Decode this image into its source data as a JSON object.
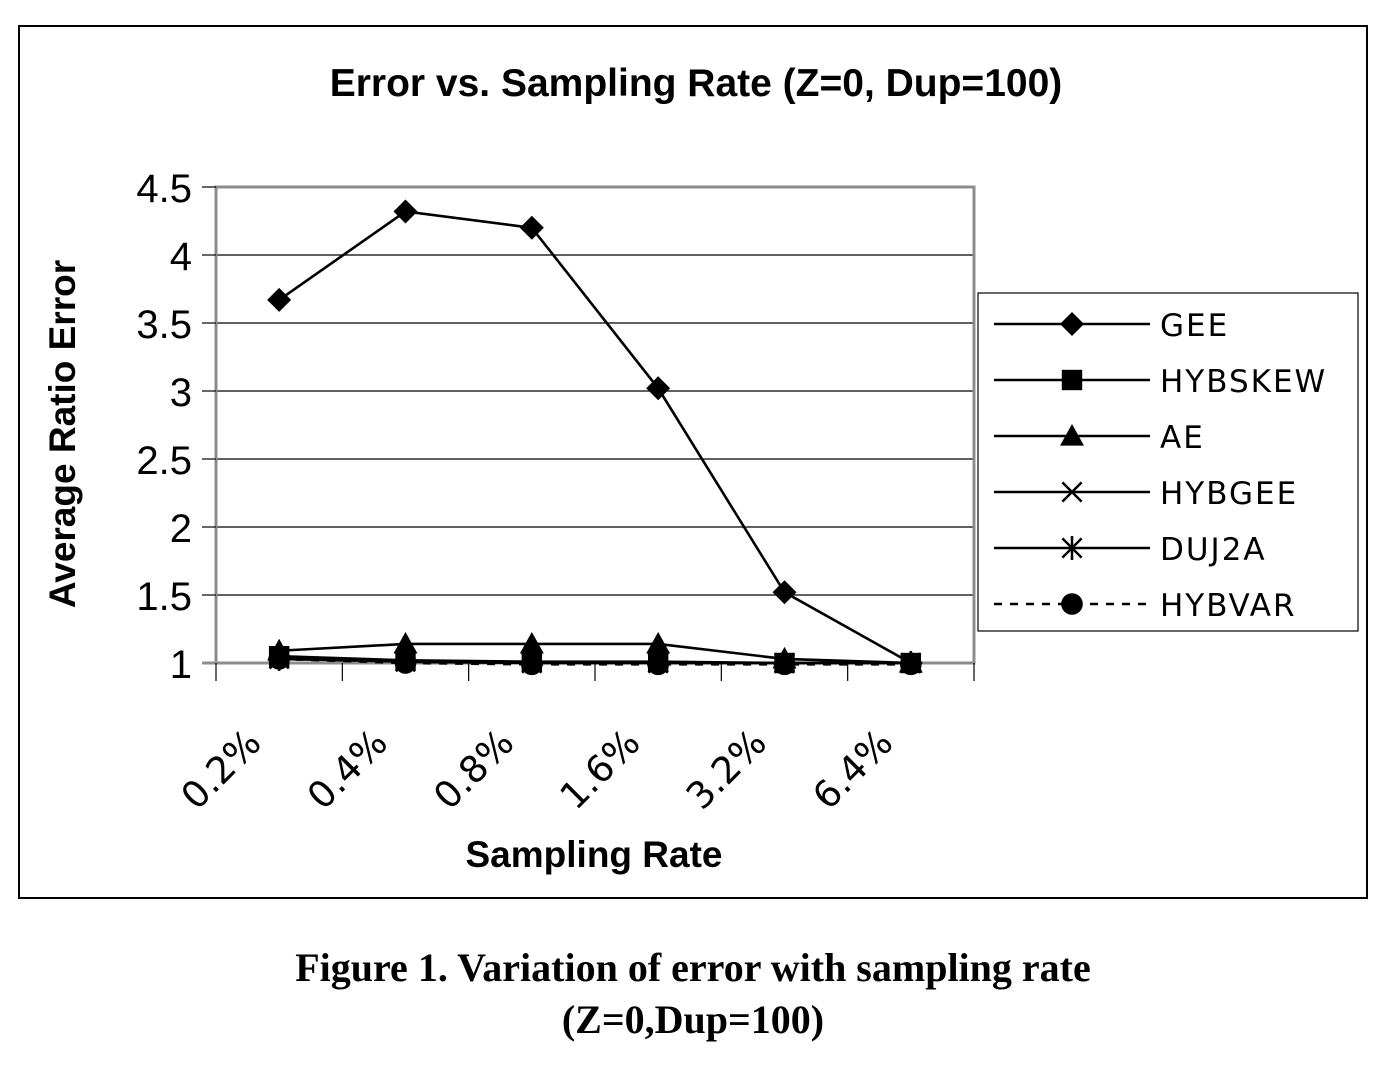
{
  "chart_data": {
    "type": "line",
    "title": "Error vs. Sampling Rate (Z=0, Dup=100)",
    "xlabel": "Sampling Rate",
    "ylabel": "Average Ratio Error",
    "categories": [
      "0.2%",
      "0.4%",
      "0.8%",
      "1.6%",
      "3.2%",
      "6.4%"
    ],
    "y_ticks": [
      "1",
      "1.5",
      "2",
      "2.5",
      "3",
      "3.5",
      "4",
      "4.5"
    ],
    "ylim": [
      1,
      4.5
    ],
    "grid": "horizontal",
    "legend_position": "right",
    "series": [
      {
        "name": "GEE",
        "marker": "diamond",
        "dash": "solid",
        "values": [
          3.67,
          4.32,
          4.2,
          3.02,
          1.52,
          1.0
        ]
      },
      {
        "name": "HYBSKEW",
        "marker": "square",
        "dash": "solid",
        "values": [
          1.05,
          1.02,
          1.01,
          1.01,
          1.0,
          1.0
        ]
      },
      {
        "name": "AE",
        "marker": "triangle",
        "dash": "solid",
        "values": [
          1.09,
          1.14,
          1.14,
          1.14,
          1.03,
          1.0
        ]
      },
      {
        "name": "HYBGEE",
        "marker": "x",
        "dash": "solid",
        "values": [
          1.04,
          1.01,
          1.0,
          1.0,
          1.0,
          1.0
        ]
      },
      {
        "name": "DUJ2A",
        "marker": "asterisk",
        "dash": "solid",
        "values": [
          1.03,
          1.01,
          1.0,
          1.0,
          1.0,
          1.0
        ]
      },
      {
        "name": "HYBVAR",
        "marker": "circle",
        "dash": "dashed",
        "values": [
          1.03,
          1.0,
          0.99,
          0.99,
          0.99,
          0.99
        ]
      }
    ]
  },
  "legend": {
    "labels": [
      "GEE",
      "HYBSKEW",
      "AE",
      "HYBGEE",
      "DUJ2A",
      "HYBVAR"
    ]
  },
  "caption": {
    "line1": "Figure 1. Variation of error with sampling rate",
    "line2": "(Z=0,Dup=100)"
  }
}
